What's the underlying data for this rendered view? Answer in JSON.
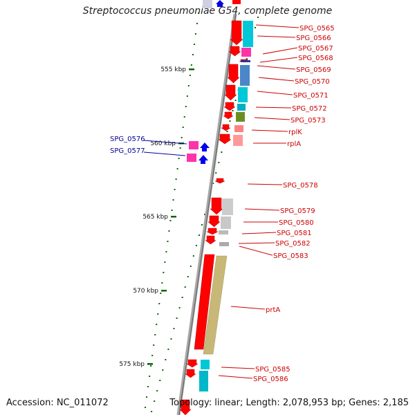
{
  "title": "Streptococcus pneumoniae G54, complete genome",
  "accession": "Accession: NC_011072",
  "summary": "Topology: linear; Length: 2,078,953 bp; Genes: 2,185",
  "colors": {
    "forward_label": "#cc0000",
    "reverse_label": "#000099",
    "backbone": "#999999",
    "tick": "#006600",
    "gene_red": "#ff0000",
    "gene_blue": "#0000ee"
  },
  "ruler": [
    {
      "label": "555 kbp"
    },
    {
      "label": "560 kbp"
    },
    {
      "label": "565 kbp"
    },
    {
      "label": "570 kbp"
    },
    {
      "label": "575 kbp"
    }
  ],
  "genes_right": [
    {
      "name": "SPG_0565"
    },
    {
      "name": "SPG_0566"
    },
    {
      "name": "SPG_0567"
    },
    {
      "name": "SPG_0568"
    },
    {
      "name": "SPG_0569"
    },
    {
      "name": "SPG_0570"
    },
    {
      "name": "SPG_0571"
    },
    {
      "name": "SPG_0572"
    },
    {
      "name": "SPG_0573"
    },
    {
      "name": "rplK"
    },
    {
      "name": "rplA"
    },
    {
      "name": "SPG_0578"
    },
    {
      "name": "SPG_0579"
    },
    {
      "name": "SPG_0580"
    },
    {
      "name": "SPG_0581"
    },
    {
      "name": "SPG_0582"
    },
    {
      "name": "SPG_0583"
    },
    {
      "name": "prtA"
    },
    {
      "name": "SPG_0585"
    },
    {
      "name": "SPG_0586"
    }
  ],
  "genes_left": [
    {
      "name": "SPG_0576"
    },
    {
      "name": "SPG_0577"
    }
  ]
}
